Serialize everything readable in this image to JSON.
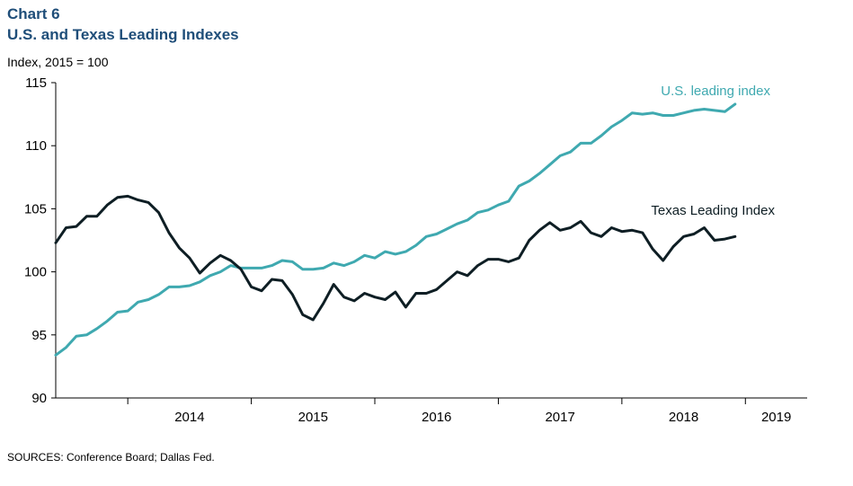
{
  "header": {
    "chart_number": "Chart 6",
    "title": "U.S. and Texas Leading Indexes"
  },
  "footer": {
    "source": "SOURCES: Conference  Board; Dallas Fed."
  },
  "colors": {
    "us": "#3fa9b0",
    "texas": "#0e1e24",
    "title": "#1f4e79"
  },
  "chart_data": {
    "type": "line",
    "title": "U.S. and Texas Leading Indexes",
    "ylabel": "Index,  2015 = 100",
    "xlabel": "",
    "ylim": [
      90,
      115
    ],
    "yticks": [
      90,
      95,
      100,
      105,
      110,
      115
    ],
    "x_categories": [
      "2014",
      "2015",
      "2016",
      "2017",
      "2018",
      "2019"
    ],
    "x_range": [
      "2013-06",
      "2019-07"
    ],
    "grid": false,
    "series": [
      {
        "name": "U.S. leading index",
        "color": "#3fa9b0",
        "x": [
          "2013-06",
          "2013-07",
          "2013-08",
          "2013-09",
          "2013-10",
          "2013-11",
          "2013-12",
          "2014-01",
          "2014-02",
          "2014-03",
          "2014-04",
          "2014-05",
          "2014-06",
          "2014-07",
          "2014-08",
          "2014-09",
          "2014-10",
          "2014-11",
          "2014-12",
          "2015-01",
          "2015-02",
          "2015-03",
          "2015-04",
          "2015-05",
          "2015-06",
          "2015-07",
          "2015-08",
          "2015-09",
          "2015-10",
          "2015-11",
          "2015-12",
          "2016-01",
          "2016-02",
          "2016-03",
          "2016-04",
          "2016-05",
          "2016-06",
          "2016-07",
          "2016-08",
          "2016-09",
          "2016-10",
          "2016-11",
          "2016-12",
          "2017-01",
          "2017-02",
          "2017-03",
          "2017-04",
          "2017-05",
          "2017-06",
          "2017-07",
          "2017-08",
          "2017-09",
          "2017-10",
          "2017-11",
          "2017-12",
          "2018-01",
          "2018-02",
          "2018-03",
          "2018-04",
          "2018-05",
          "2018-06",
          "2018-07",
          "2018-08",
          "2018-09",
          "2018-10",
          "2018-11",
          "2018-12",
          "2019-01",
          "2019-02",
          "2019-03",
          "2019-04",
          "2019-05",
          "2019-06"
        ],
        "values": [
          93.4,
          94.0,
          94.9,
          95.0,
          95.5,
          96.1,
          96.8,
          96.9,
          97.6,
          97.8,
          98.2,
          98.8,
          98.8,
          98.9,
          99.2,
          99.7,
          100.0,
          100.5,
          100.3,
          100.3,
          100.3,
          100.5,
          100.9,
          100.8,
          100.2,
          100.2,
          100.3,
          100.7,
          100.5,
          100.8,
          101.3,
          101.1,
          101.6,
          101.4,
          101.6,
          102.1,
          102.8,
          103.0,
          103.4,
          103.8,
          104.1,
          104.7,
          104.9,
          105.3,
          105.6,
          106.8,
          107.2,
          107.8,
          108.5,
          109.2,
          109.5,
          110.2,
          110.2,
          110.8,
          111.5,
          112.0,
          112.6,
          112.5,
          112.6,
          112.4,
          112.4,
          112.6,
          112.8,
          112.9,
          112.8,
          112.7,
          113.3,
          null,
          null,
          null,
          null,
          null,
          null
        ]
      },
      {
        "name": "Texas Leading Index",
        "color": "#0e1e24",
        "x": [
          "2013-06",
          "2013-07",
          "2013-08",
          "2013-09",
          "2013-10",
          "2013-11",
          "2013-12",
          "2014-01",
          "2014-02",
          "2014-03",
          "2014-04",
          "2014-05",
          "2014-06",
          "2014-07",
          "2014-08",
          "2014-09",
          "2014-10",
          "2014-11",
          "2014-12",
          "2015-01",
          "2015-02",
          "2015-03",
          "2015-04",
          "2015-05",
          "2015-06",
          "2015-07",
          "2015-08",
          "2015-09",
          "2015-10",
          "2015-11",
          "2015-12",
          "2016-01",
          "2016-02",
          "2016-03",
          "2016-04",
          "2016-05",
          "2016-06",
          "2016-07",
          "2016-08",
          "2016-09",
          "2016-10",
          "2016-11",
          "2016-12",
          "2017-01",
          "2017-02",
          "2017-03",
          "2017-04",
          "2017-05",
          "2017-06",
          "2017-07",
          "2017-08",
          "2017-09",
          "2017-10",
          "2017-11",
          "2017-12",
          "2018-01",
          "2018-02",
          "2018-03",
          "2018-04",
          "2018-05",
          "2018-06",
          "2018-07",
          "2018-08",
          "2018-09",
          "2018-10",
          "2018-11",
          "2018-12",
          "2019-01",
          "2019-02",
          "2019-03",
          "2019-04",
          "2019-05",
          "2019-06"
        ],
        "values": [
          102.3,
          103.5,
          103.6,
          104.4,
          104.4,
          105.3,
          105.9,
          106.0,
          105.7,
          105.5,
          104.7,
          103.1,
          101.9,
          101.1,
          99.9,
          100.7,
          101.3,
          100.9,
          100.2,
          98.8,
          98.5,
          99.4,
          99.3,
          98.2,
          96.6,
          96.2,
          97.5,
          99.0,
          98.0,
          97.7,
          98.3,
          98.0,
          97.8,
          98.4,
          97.2,
          98.3,
          98.3,
          98.6,
          99.3,
          100.0,
          99.7,
          100.5,
          101.0,
          101.0,
          100.8,
          101.1,
          102.5,
          103.3,
          103.9,
          103.3,
          103.5,
          104.0,
          103.1,
          102.8,
          103.5,
          103.2,
          103.3,
          103.1,
          101.8,
          100.9,
          102.0,
          102.8,
          103.0,
          103.5,
          102.5,
          102.6,
          102.8,
          null,
          null,
          null,
          null,
          null,
          null
        ]
      }
    ],
    "legend": {
      "placement": "inline-labels",
      "us_label": "U.S. leading index",
      "texas_label": "Texas Leading Index"
    }
  }
}
